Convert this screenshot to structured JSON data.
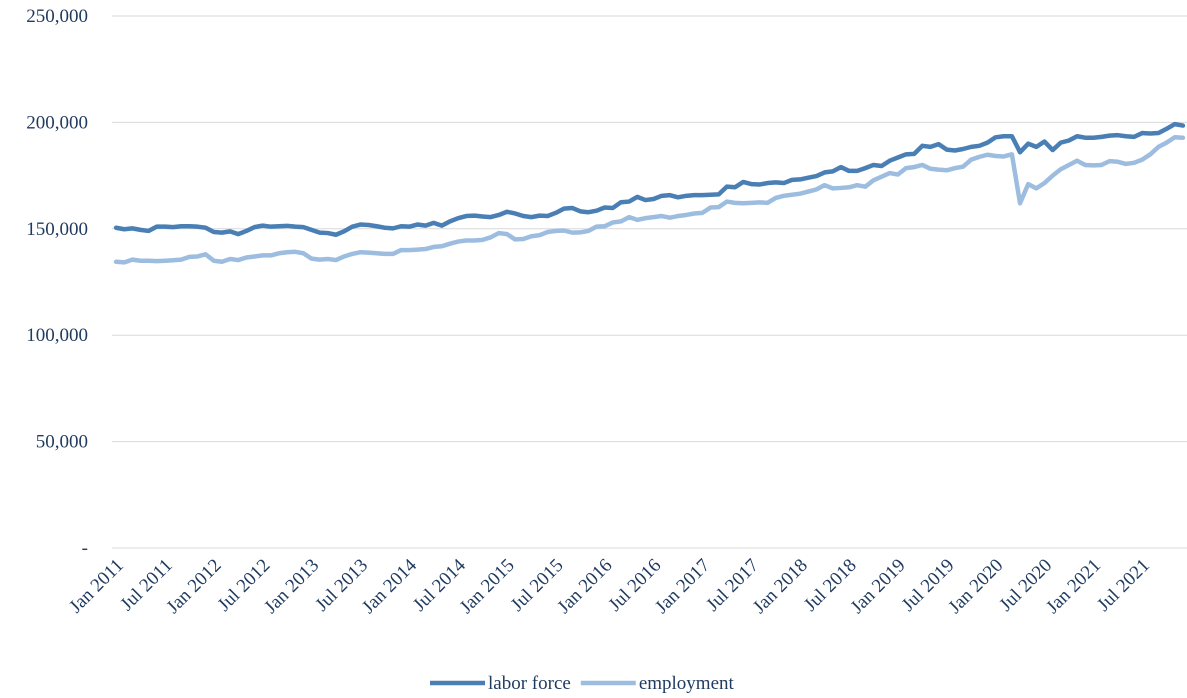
{
  "chart_data": {
    "type": "line",
    "categories": [
      "Jan 2011",
      null,
      null,
      null,
      null,
      null,
      "Jul 2011",
      null,
      null,
      null,
      null,
      null,
      "Jan 2012",
      null,
      null,
      null,
      null,
      null,
      "Jul 2012",
      null,
      null,
      null,
      null,
      null,
      "Jan 2013",
      null,
      null,
      null,
      null,
      null,
      "Jul 2013",
      null,
      null,
      null,
      null,
      null,
      "Jan 2014",
      null,
      null,
      null,
      null,
      null,
      "Jul 2014",
      null,
      null,
      null,
      null,
      null,
      "Jan 2015",
      null,
      null,
      null,
      null,
      null,
      "Jul 2015",
      null,
      null,
      null,
      null,
      null,
      "Jan 2016",
      null,
      null,
      null,
      null,
      null,
      "Jul 2016",
      null,
      null,
      null,
      null,
      null,
      "Jan 2017",
      null,
      null,
      null,
      null,
      null,
      "Jul 2017",
      null,
      null,
      null,
      null,
      null,
      "Jan 2018",
      null,
      null,
      null,
      null,
      null,
      "Jul 2018",
      null,
      null,
      null,
      null,
      null,
      "Jan 2019",
      null,
      null,
      null,
      null,
      null,
      "Jul 2019",
      null,
      null,
      null,
      null,
      null,
      "Jan 2020",
      null,
      null,
      null,
      null,
      null,
      "Jul 2020",
      null,
      null,
      null,
      null,
      null,
      "Jan 2021",
      null,
      null,
      null,
      null,
      null,
      "Jul 2021",
      null,
      null,
      null,
      null,
      null
    ],
    "series": [
      {
        "name": "labor force",
        "color": "#4a7fb5",
        "values": [
          150500,
          149800,
          150200,
          149500,
          149000,
          151000,
          151000,
          150800,
          151200,
          151200,
          151000,
          150500,
          148500,
          148200,
          148800,
          147500,
          149000,
          150800,
          151500,
          151000,
          151200,
          151400,
          151000,
          150800,
          149500,
          148200,
          148000,
          147200,
          148800,
          151000,
          152000,
          151800,
          151200,
          150500,
          150200,
          151200,
          151000,
          152000,
          151500,
          152800,
          151500,
          153500,
          155000,
          156000,
          156200,
          155800,
          155500,
          156500,
          158000,
          157200,
          156000,
          155500,
          156200,
          156000,
          157500,
          159500,
          159800,
          158200,
          157800,
          158500,
          160000,
          159800,
          162500,
          162800,
          165000,
          163500,
          164000,
          165500,
          165800,
          164800,
          165500,
          165800,
          165800,
          166000,
          166200,
          169800,
          169500,
          172000,
          171000,
          170800,
          171500,
          171800,
          171500,
          173000,
          173200,
          174000,
          174800,
          176500,
          177000,
          179000,
          177200,
          177200,
          178500,
          180000,
          179500,
          182000,
          183500,
          185000,
          185200,
          189000,
          188500,
          189800,
          187200,
          186800,
          187500,
          188500,
          189000,
          190500,
          193000,
          193500,
          193500,
          186000,
          190000,
          188500,
          191000,
          187000,
          190500,
          191500,
          193500,
          192800,
          192800,
          193200,
          193800,
          194000,
          193500,
          193200,
          195000,
          194800,
          195000,
          197000,
          199200,
          198500
        ]
      },
      {
        "name": "employment",
        "color": "#9dbde0",
        "values": [
          134500,
          134200,
          135500,
          135000,
          135000,
          134800,
          135000,
          135200,
          135500,
          136800,
          137000,
          138000,
          135000,
          134500,
          135800,
          135300,
          136500,
          137000,
          137500,
          137500,
          138500,
          139000,
          139200,
          138500,
          136000,
          135500,
          135800,
          135300,
          137000,
          138200,
          139000,
          138800,
          138500,
          138200,
          138200,
          140000,
          140000,
          140200,
          140500,
          141500,
          141800,
          143000,
          144000,
          144500,
          144500,
          144800,
          146000,
          148000,
          147500,
          145000,
          145200,
          146500,
          147000,
          148500,
          149000,
          149200,
          148200,
          148300,
          149000,
          151000,
          151200,
          153000,
          153500,
          155500,
          154200,
          155000,
          155500,
          156000,
          155200,
          156000,
          156500,
          157200,
          157500,
          160000,
          160200,
          162800,
          162200,
          162000,
          162200,
          162400,
          162200,
          164500,
          165500,
          166000,
          166500,
          167500,
          168500,
          170500,
          169000,
          169200,
          169500,
          170500,
          169800,
          172800,
          174500,
          176200,
          175500,
          178500,
          179000,
          180000,
          178200,
          177800,
          177500,
          178500,
          179200,
          182500,
          183800,
          184800,
          184200,
          184000,
          185000,
          162000,
          171000,
          169000,
          171500,
          175000,
          178000,
          180000,
          182000,
          180000,
          179800,
          180000,
          181800,
          181500,
          180500,
          181000,
          182500,
          185000,
          188500,
          190500,
          193000,
          192800
        ]
      }
    ],
    "ylim": [
      0,
      250000
    ],
    "yticks": [
      {
        "value": 0,
        "label": "-"
      },
      {
        "value": 50000,
        "label": "50,000"
      },
      {
        "value": 100000,
        "label": "100,000"
      },
      {
        "value": 150000,
        "label": "150,000"
      },
      {
        "value": 200000,
        "label": "200,000"
      },
      {
        "value": 250000,
        "label": "250,000"
      }
    ],
    "grid": true,
    "legend": "bottom"
  }
}
